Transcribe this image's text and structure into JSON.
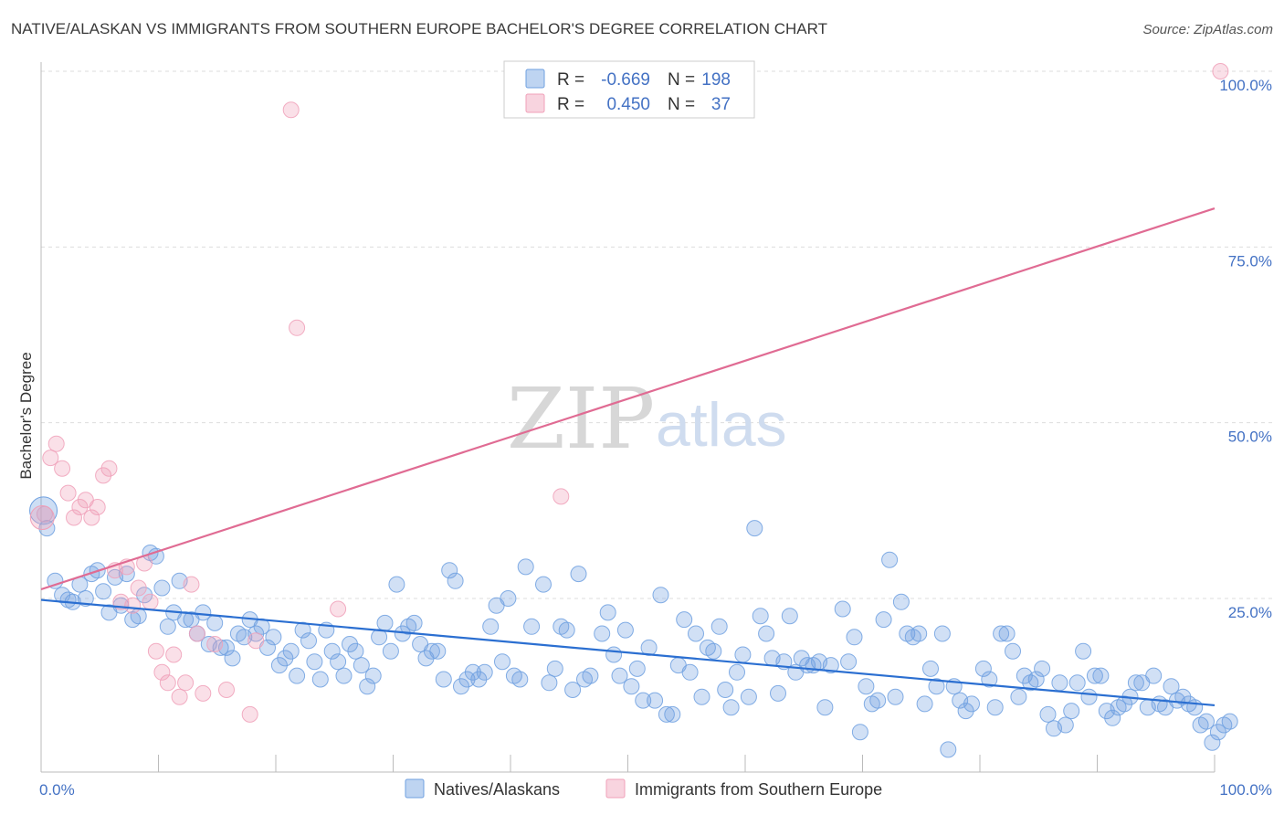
{
  "header": {
    "title": "NATIVE/ALASKAN VS IMMIGRANTS FROM SOUTHERN EUROPE BACHELOR'S DEGREE CORRELATION CHART",
    "source": "Source: ZipAtlas.com"
  },
  "watermark": {
    "zip": "ZIP",
    "atlas": "atlas"
  },
  "legend": {
    "r_label": "R =",
    "n_label": "N =",
    "rows": [
      {
        "r": "-0.669",
        "n": "198",
        "color": "#6fa0e0"
      },
      {
        "r": "0.450",
        "n": "37",
        "color": "#f0a0b8"
      }
    ]
  },
  "bottom_legend": [
    {
      "label": "Natives/Alaskans",
      "color": "#6fa0e0"
    },
    {
      "label": "Immigrants from Southern Europe",
      "color": "#f0a0b8"
    }
  ],
  "chart_data": {
    "type": "scatter",
    "title": "NATIVE/ALASKAN VS IMMIGRANTS FROM SOUTHERN EUROPE BACHELOR'S DEGREE CORRELATION CHART",
    "xlabel": "",
    "ylabel": "Bachelor's Degree",
    "xlim": [
      0,
      100
    ],
    "ylim": [
      0,
      102
    ],
    "x_tick_labels": [
      "0.0%",
      "100.0%"
    ],
    "y_tick_labels": [
      "25.0%",
      "50.0%",
      "75.0%",
      "100.0%"
    ],
    "y_ticks": [
      25,
      50,
      75,
      100
    ],
    "grid": true,
    "series": [
      {
        "name": "Natives/Alaskans",
        "color": "#6fa0e0",
        "line_color": "#2b6fd1",
        "trend": [
          [
            0,
            24.8
          ],
          [
            100,
            9.8
          ]
        ],
        "points": [
          [
            0.5,
            35
          ],
          [
            1.2,
            27.5
          ],
          [
            1.8,
            25.5
          ],
          [
            2.3,
            24.8
          ],
          [
            2.7,
            24.5
          ],
          [
            3.3,
            27
          ],
          [
            3.8,
            25
          ],
          [
            4.3,
            28.5
          ],
          [
            4.8,
            29
          ],
          [
            5.3,
            26
          ],
          [
            5.8,
            23
          ],
          [
            6.3,
            28
          ],
          [
            6.8,
            24
          ],
          [
            7.3,
            28.5
          ],
          [
            7.8,
            22
          ],
          [
            8.3,
            22.5
          ],
          [
            8.8,
            25.5
          ],
          [
            9.3,
            31.5
          ],
          [
            9.8,
            31
          ],
          [
            10.3,
            26.5
          ],
          [
            10.8,
            21
          ],
          [
            11.3,
            23
          ],
          [
            11.8,
            27.5
          ],
          [
            12.3,
            22
          ],
          [
            12.8,
            22
          ],
          [
            13.3,
            20
          ],
          [
            13.8,
            23
          ],
          [
            14.3,
            18.5
          ],
          [
            14.8,
            21.5
          ],
          [
            15.3,
            18
          ],
          [
            15.8,
            18
          ],
          [
            16.3,
            16.5
          ],
          [
            16.8,
            20
          ],
          [
            17.3,
            19.5
          ],
          [
            17.8,
            22
          ],
          [
            18.3,
            20
          ],
          [
            18.8,
            21
          ],
          [
            19.3,
            18
          ],
          [
            19.8,
            19.5
          ],
          [
            20.3,
            15.5
          ],
          [
            20.8,
            16.5
          ],
          [
            21.3,
            17.5
          ],
          [
            21.8,
            14
          ],
          [
            22.3,
            20.5
          ],
          [
            22.8,
            19
          ],
          [
            23.3,
            16
          ],
          [
            23.8,
            13.5
          ],
          [
            24.3,
            20.5
          ],
          [
            24.8,
            17.5
          ],
          [
            25.3,
            16
          ],
          [
            25.8,
            14
          ],
          [
            26.3,
            18.5
          ],
          [
            26.8,
            17.5
          ],
          [
            27.3,
            15.5
          ],
          [
            27.8,
            12.5
          ],
          [
            28.3,
            14
          ],
          [
            28.8,
            19.5
          ],
          [
            29.3,
            21.5
          ],
          [
            29.8,
            17.5
          ],
          [
            30.3,
            27
          ],
          [
            30.8,
            20
          ],
          [
            31.3,
            21
          ],
          [
            31.8,
            21.5
          ],
          [
            32.3,
            18.5
          ],
          [
            32.8,
            16.5
          ],
          [
            33.3,
            17.5
          ],
          [
            33.8,
            17.5
          ],
          [
            34.3,
            13.5
          ],
          [
            34.8,
            29
          ],
          [
            35.3,
            27.5
          ],
          [
            35.8,
            12.5
          ],
          [
            36.3,
            13.5
          ],
          [
            36.8,
            14.5
          ],
          [
            37.3,
            13.5
          ],
          [
            37.8,
            14.5
          ],
          [
            38.3,
            21
          ],
          [
            38.8,
            24
          ],
          [
            39.3,
            16
          ],
          [
            39.8,
            25
          ],
          [
            40.3,
            14
          ],
          [
            40.8,
            13.5
          ],
          [
            41.3,
            29.5
          ],
          [
            41.8,
            21
          ],
          [
            42.8,
            27
          ],
          [
            43.3,
            13
          ],
          [
            43.8,
            15
          ],
          [
            44.3,
            21
          ],
          [
            44.8,
            20.5
          ],
          [
            45.3,
            12
          ],
          [
            45.8,
            28.5
          ],
          [
            46.3,
            13.5
          ],
          [
            46.8,
            14
          ],
          [
            47.8,
            20
          ],
          [
            48.3,
            23
          ],
          [
            48.8,
            17
          ],
          [
            49.3,
            14
          ],
          [
            49.8,
            20.5
          ],
          [
            50.3,
            12.5
          ],
          [
            50.8,
            15
          ],
          [
            51.3,
            10.5
          ],
          [
            51.8,
            18
          ],
          [
            52.3,
            10.5
          ],
          [
            52.8,
            25.5
          ],
          [
            53.3,
            8.5
          ],
          [
            53.8,
            8.5
          ],
          [
            54.3,
            15.5
          ],
          [
            54.8,
            22
          ],
          [
            55.3,
            14.5
          ],
          [
            55.8,
            20
          ],
          [
            56.3,
            11
          ],
          [
            56.8,
            18
          ],
          [
            57.3,
            17.5
          ],
          [
            57.8,
            21
          ],
          [
            58.3,
            12
          ],
          [
            58.8,
            9.5
          ],
          [
            59.3,
            14.5
          ],
          [
            59.8,
            17
          ],
          [
            60.3,
            11
          ],
          [
            60.8,
            35
          ],
          [
            61.3,
            22.5
          ],
          [
            61.8,
            20
          ],
          [
            62.3,
            16.5
          ],
          [
            62.8,
            11.5
          ],
          [
            63.3,
            16
          ],
          [
            63.8,
            22.5
          ],
          [
            64.3,
            14.5
          ],
          [
            64.8,
            16.5
          ],
          [
            65.3,
            15.5
          ],
          [
            65.8,
            15.5
          ],
          [
            66.3,
            16
          ],
          [
            66.8,
            9.5
          ],
          [
            67.3,
            15.5
          ],
          [
            68.3,
            23.5
          ],
          [
            68.8,
            16
          ],
          [
            69.3,
            19.5
          ],
          [
            69.8,
            6
          ],
          [
            70.3,
            12.5
          ],
          [
            70.8,
            10
          ],
          [
            71.3,
            10.5
          ],
          [
            71.8,
            22
          ],
          [
            72.3,
            30.5
          ],
          [
            72.8,
            11
          ],
          [
            73.3,
            24.5
          ],
          [
            73.8,
            20
          ],
          [
            74.3,
            19.5
          ],
          [
            74.8,
            20
          ],
          [
            75.3,
            10
          ],
          [
            75.8,
            15
          ],
          [
            76.3,
            12.5
          ],
          [
            76.8,
            20
          ],
          [
            77.3,
            3.5
          ],
          [
            77.8,
            12.5
          ],
          [
            78.3,
            10.5
          ],
          [
            78.8,
            9
          ],
          [
            79.3,
            10
          ],
          [
            80.3,
            15
          ],
          [
            80.8,
            13.5
          ],
          [
            81.3,
            9.5
          ],
          [
            81.8,
            20
          ],
          [
            82.3,
            20
          ],
          [
            82.8,
            17.5
          ],
          [
            83.3,
            11
          ],
          [
            83.8,
            14
          ],
          [
            84.3,
            13
          ],
          [
            84.8,
            13.5
          ],
          [
            85.3,
            15
          ],
          [
            85.8,
            8.5
          ],
          [
            86.3,
            6.5
          ],
          [
            86.8,
            13
          ],
          [
            87.3,
            7
          ],
          [
            87.8,
            9
          ],
          [
            88.3,
            13
          ],
          [
            88.8,
            17.5
          ],
          [
            89.3,
            11
          ],
          [
            89.8,
            14
          ],
          [
            90.3,
            14
          ],
          [
            90.8,
            9
          ],
          [
            91.3,
            8
          ],
          [
            91.8,
            9.5
          ],
          [
            92.3,
            10
          ],
          [
            92.8,
            11
          ],
          [
            93.3,
            13
          ],
          [
            93.8,
            13
          ],
          [
            94.3,
            9.5
          ],
          [
            94.8,
            14
          ],
          [
            95.3,
            10
          ],
          [
            95.8,
            9.5
          ],
          [
            96.3,
            12.5
          ],
          [
            96.8,
            10.5
          ],
          [
            97.3,
            11
          ],
          [
            97.8,
            10
          ],
          [
            98.3,
            9.5
          ],
          [
            98.8,
            7
          ],
          [
            99.3,
            7.5
          ],
          [
            99.8,
            4.5
          ],
          [
            100.3,
            6
          ],
          [
            100.8,
            7
          ],
          [
            101.3,
            7.5
          ]
        ]
      },
      {
        "name": "Immigrants from Southern Europe",
        "color": "#f0a0b8",
        "line_color": "#e06b93",
        "trend": [
          [
            0,
            26.3
          ],
          [
            100,
            80.5
          ]
        ],
        "points": [
          [
            0.3,
            37
          ],
          [
            0.8,
            45
          ],
          [
            1.3,
            47
          ],
          [
            1.8,
            43.5
          ],
          [
            2.3,
            40
          ],
          [
            2.8,
            36.5
          ],
          [
            3.3,
            38
          ],
          [
            3.8,
            39
          ],
          [
            4.3,
            36.5
          ],
          [
            4.8,
            38
          ],
          [
            5.3,
            42.5
          ],
          [
            5.8,
            43.5
          ],
          [
            6.3,
            29
          ],
          [
            6.8,
            24.5
          ],
          [
            7.3,
            29.5
          ],
          [
            7.8,
            24
          ],
          [
            8.3,
            26.5
          ],
          [
            8.8,
            30
          ],
          [
            9.3,
            24.5
          ],
          [
            9.8,
            17.5
          ],
          [
            10.3,
            14.5
          ],
          [
            10.8,
            13
          ],
          [
            11.3,
            17
          ],
          [
            11.8,
            11
          ],
          [
            12.3,
            13
          ],
          [
            12.8,
            27
          ],
          [
            13.3,
            20
          ],
          [
            13.8,
            11.5
          ],
          [
            14.8,
            18.5
          ],
          [
            15.8,
            12
          ],
          [
            17.8,
            8.5
          ],
          [
            18.3,
            19
          ],
          [
            21.3,
            94.5
          ],
          [
            21.8,
            63.5
          ],
          [
            25.3,
            23.5
          ],
          [
            44.3,
            39.5
          ],
          [
            100.5,
            100
          ]
        ]
      }
    ]
  }
}
